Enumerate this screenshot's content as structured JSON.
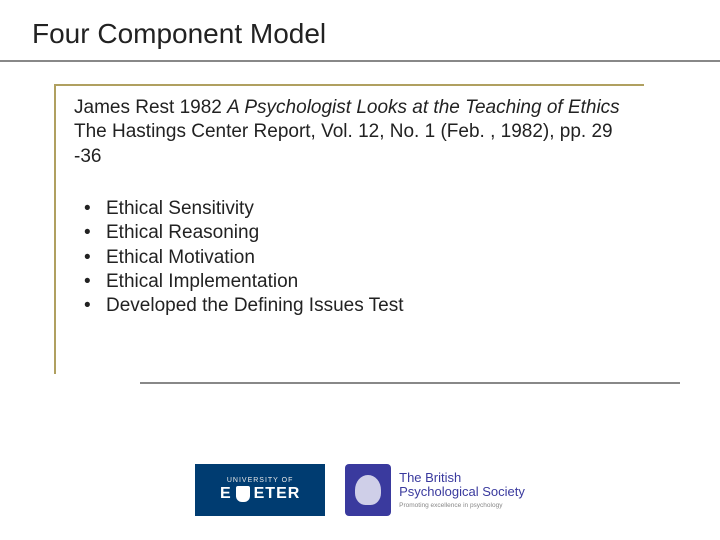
{
  "title": "Four Component Model",
  "citation": {
    "prefix": "James Rest 1982 ",
    "italic": "A Psychologist Looks at the Teaching of Ethics",
    "suffix": " The Hastings Center Report, Vol. 12, No. 1 (Feb. , 1982), pp. 29 -36"
  },
  "bullets": [
    "Ethical Sensitivity",
    "Ethical Reasoning",
    "Ethical Motivation",
    "Ethical Implementation",
    "Developed the Defining Issues Test"
  ],
  "footer": {
    "exeter_top": "UNIVERSITY OF",
    "exeter_main": "E ETER",
    "bps_line1": "The British",
    "bps_line2": "Psychological Society",
    "bps_tag": "Promoting excellence in psychology"
  },
  "colors": {
    "rule": "#888888",
    "frame": "#b0a060",
    "exeter_bg": "#003c71",
    "bps_purple": "#3a3a9e"
  }
}
